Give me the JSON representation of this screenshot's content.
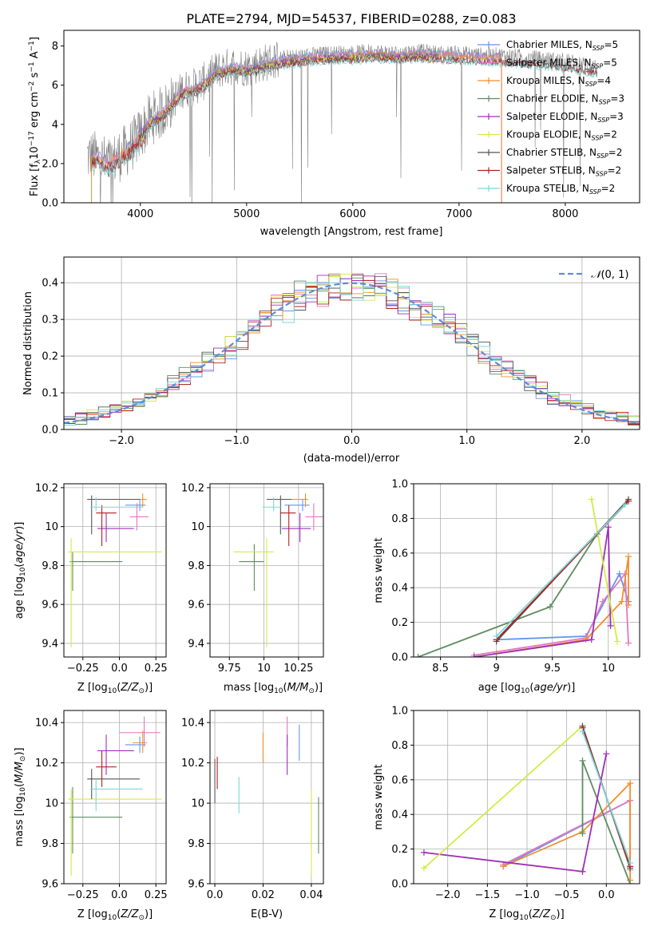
{
  "figure": {
    "title": "PLATE=2794, MJD=54537, FIBERID=0288, z=0.083"
  },
  "models": [
    {
      "name": "Chabrier MILES",
      "nssp": "5",
      "color": "#6495ED"
    },
    {
      "name": "Salpeter MILES",
      "nssp": "5",
      "color": "#e377c2"
    },
    {
      "name": "Kroupa MILES",
      "nssp": "4",
      "color": "#f28e2b"
    },
    {
      "name": "Chabrier ELODIE",
      "nssp": "3",
      "color": "#5e8c61"
    },
    {
      "name": "Salpeter ELODIE",
      "nssp": "3",
      "color": "#9b30b8"
    },
    {
      "name": "Kroupa ELODIE",
      "nssp": "2",
      "color": "#d4ea45"
    },
    {
      "name": "Chabrier STELIB",
      "nssp": "2",
      "color": "#555555"
    },
    {
      "name": "Salpeter STELIB",
      "nssp": "2",
      "color": "#b22222"
    },
    {
      "name": "Kroupa STELIB",
      "nssp": "2",
      "color": "#7dd7d7"
    }
  ],
  "chart_data": [
    {
      "id": "spectrum",
      "type": "line",
      "xlabel": "wavelength [Angstrom, rest frame]",
      "ylabel": "Flux [f$_\\lambda$10$^{-17}$ erg cm$^{-2}$ s$^{-1}$ A$^{-1}$]",
      "xlim": [
        3280,
        8700
      ],
      "ylim": [
        0,
        8.8
      ],
      "xticks": [
        4000,
        5000,
        6000,
        7000,
        8000
      ],
      "yticks": [
        0,
        2,
        4,
        6,
        8
      ],
      "data_color": "#808080",
      "data_x": [
        3500,
        3600,
        3700,
        3800,
        3900,
        4000,
        4100,
        4200,
        4300,
        4400,
        4500,
        4600,
        4700,
        4800,
        4900,
        5000,
        5200,
        5400,
        5600,
        5800,
        6000,
        6200,
        6400,
        6600,
        6800,
        7000,
        7200,
        7400,
        7600,
        7800,
        8000,
        8200,
        8300
      ],
      "data_y": [
        2.4,
        2.3,
        2.0,
        2.4,
        2.8,
        3.5,
        4.3,
        4.6,
        5.2,
        5.8,
        5.9,
        6.2,
        6.7,
        6.9,
        7.0,
        6.9,
        7.2,
        7.4,
        7.5,
        7.6,
        7.6,
        7.7,
        7.6,
        7.7,
        7.6,
        7.6,
        7.5,
        7.5,
        7.4,
        7.3,
        7.2,
        7.0,
        6.9
      ],
      "models": [
        {
          "name": "Chabrier MILES",
          "x_range": [
            3540,
            7400
          ]
        },
        {
          "name": "Salpeter MILES",
          "x_range": [
            3540,
            7400
          ]
        },
        {
          "name": "Kroupa MILES",
          "x_range": [
            3540,
            7400
          ]
        },
        {
          "name": "Chabrier ELODIE",
          "x_range": [
            4000,
            6800
          ]
        },
        {
          "name": "Salpeter ELODIE",
          "x_range": [
            4000,
            6800
          ]
        },
        {
          "name": "Kroupa ELODIE",
          "x_range": [
            4000,
            6800
          ]
        },
        {
          "name": "Chabrier STELIB",
          "x_range": [
            3540,
            8300
          ]
        },
        {
          "name": "Salpeter STELIB",
          "x_range": [
            3540,
            8300
          ]
        },
        {
          "name": "Kroupa STELIB",
          "x_range": [
            3540,
            8300
          ]
        }
      ],
      "legend_suffix_main": ", N",
      "legend_suffix_sub": "SSP",
      "legend_placement": "right"
    },
    {
      "id": "residuals",
      "type": "histogram",
      "xlabel": "(data-model)/error",
      "ylabel": "Normed distribution",
      "xlim": [
        -2.5,
        2.5
      ],
      "ylim": [
        0,
        0.47
      ],
      "xticks": [
        -2,
        -1,
        0,
        1,
        2
      ],
      "yticks": [
        0.0,
        0.1,
        0.2,
        0.3,
        0.4
      ],
      "grid": true,
      "bin_width": 0.1,
      "reference_curve": {
        "label": "N(0,1)",
        "mean": 0,
        "sigma": 1,
        "color": "#5b8ed6",
        "dashed": true
      },
      "legend_placement": "top-right"
    },
    {
      "id": "age-vs-Z",
      "type": "errorbar",
      "xlabel": "Z [log10(Z/Z_sun)]",
      "ylabel": "age [log10(age/yr)]",
      "xlim": [
        -0.38,
        0.32
      ],
      "ylim": [
        9.33,
        10.22
      ],
      "xticks": [
        -0.25,
        0.0,
        0.25
      ],
      "yticks": [
        9.4,
        9.6,
        9.8,
        10.0,
        10.2
      ],
      "grid": true,
      "points": [
        {
          "model": "Chabrier MILES",
          "x": 0.14,
          "xerr": [
            0.1,
            0.04
          ],
          "y": 10.11,
          "yerr": [
            0.03,
            0.03
          ]
        },
        {
          "model": "Salpeter MILES",
          "x": 0.12,
          "xerr": [
            0.05,
            0.08
          ],
          "y": 10.05,
          "yerr": [
            0.07,
            0.07
          ]
        },
        {
          "model": "Kroupa MILES",
          "x": 0.16,
          "xerr": [
            0.11,
            0.03
          ],
          "y": 10.14,
          "yerr": [
            0.04,
            0.03
          ]
        },
        {
          "model": "Chabrier ELODIE",
          "x": -0.32,
          "xerr": [
            0.02,
            0.34
          ],
          "y": 9.82,
          "yerr": [
            0.15,
            0.05
          ]
        },
        {
          "model": "Salpeter ELODIE",
          "x": -0.09,
          "xerr": [
            0.06,
            0.19
          ],
          "y": 9.99,
          "yerr": [
            0.07,
            0.08
          ]
        },
        {
          "model": "Kroupa ELODIE",
          "x": -0.33,
          "xerr": [
            0.02,
            0.62
          ],
          "y": 9.87,
          "yerr": [
            0.49,
            0.07
          ]
        },
        {
          "model": "Chabrier STELIB",
          "x": -0.19,
          "xerr": [
            0.03,
            0.33
          ],
          "y": 10.14,
          "yerr": [
            0.18,
            0.02
          ]
        },
        {
          "model": "Salpeter STELIB",
          "x": -0.12,
          "xerr": [
            0.04,
            0.1
          ],
          "y": 10.07,
          "yerr": [
            0.17,
            0.04
          ]
        },
        {
          "model": "Kroupa STELIB",
          "x": -0.16,
          "xerr": [
            0.04,
            0.32
          ],
          "y": 10.1,
          "yerr": [
            0.02,
            0.05
          ]
        }
      ]
    },
    {
      "id": "age-vs-mass",
      "type": "errorbar",
      "xlabel": "mass [log10(M/M_sun)]",
      "ylabel": "",
      "xlim": [
        9.61,
        10.43
      ],
      "ylim": [
        9.33,
        10.22
      ],
      "xticks": [
        9.75,
        10.0,
        10.25
      ],
      "yticks": [
        9.4,
        9.6,
        9.8,
        10.0,
        10.2
      ],
      "grid": true,
      "points": [
        {
          "model": "Chabrier MILES",
          "x": 10.28,
          "xerr": [
            0.13,
            0.05
          ],
          "y": 10.11,
          "yerr": [
            0.03,
            0.03
          ]
        },
        {
          "model": "Salpeter MILES",
          "x": 10.36,
          "xerr": [
            0.06,
            0.08
          ],
          "y": 10.05,
          "yerr": [
            0.07,
            0.07
          ]
        },
        {
          "model": "Kroupa MILES",
          "x": 10.3,
          "xerr": [
            0.1,
            0.02
          ],
          "y": 10.14,
          "yerr": [
            0.04,
            0.03
          ]
        },
        {
          "model": "Chabrier ELODIE",
          "x": 9.93,
          "xerr": [
            0.11,
            0.07
          ],
          "y": 9.82,
          "yerr": [
            0.15,
            0.09
          ]
        },
        {
          "model": "Salpeter ELODIE",
          "x": 10.26,
          "xerr": [
            0.13,
            0.08
          ],
          "y": 9.99,
          "yerr": [
            0.07,
            0.08
          ]
        },
        {
          "model": "Kroupa ELODIE",
          "x": 10.02,
          "xerr": [
            0.24,
            0.05
          ],
          "y": 9.87,
          "yerr": [
            0.49,
            0.07
          ]
        },
        {
          "model": "Chabrier STELIB",
          "x": 10.12,
          "xerr": [
            0.1,
            0.08
          ],
          "y": 10.14,
          "yerr": [
            0.18,
            0.02
          ]
        },
        {
          "model": "Salpeter STELIB",
          "x": 10.18,
          "xerr": [
            0.06,
            0.05
          ],
          "y": 10.07,
          "yerr": [
            0.17,
            0.04
          ]
        },
        {
          "model": "Kroupa STELIB",
          "x": 10.07,
          "xerr": [
            0.08,
            0.06
          ],
          "y": 10.1,
          "yerr": [
            0.02,
            0.05
          ]
        }
      ]
    },
    {
      "id": "weights-vs-age",
      "type": "line",
      "xlabel": "age [log10(age/yr)]",
      "ylabel": "mass weight",
      "xlim": [
        8.26,
        10.28
      ],
      "ylim": [
        0,
        1.0
      ],
      "xticks": [
        8.5,
        9.0,
        9.5,
        10.0
      ],
      "yticks": [
        0.0,
        0.2,
        0.4,
        0.6,
        0.8,
        1.0
      ],
      "grid": true,
      "series": [
        {
          "name": "Chabrier MILES",
          "x": [
            9.0,
            9.8,
            10.1,
            10.18
          ],
          "y": [
            0.1,
            0.12,
            0.48,
            0.32
          ]
        },
        {
          "name": "Salpeter MILES",
          "x": [
            8.8,
            9.8,
            9.95,
            10.15,
            10.18
          ],
          "y": [
            0.01,
            0.11,
            0.32,
            0.48,
            0.08
          ]
        },
        {
          "name": "Kroupa MILES",
          "x": [
            9.0,
            9.8,
            10.12,
            10.18,
            10.18
          ],
          "y": [
            0.02,
            0.1,
            0.32,
            0.58,
            0.3
          ]
        },
        {
          "name": "Chabrier ELODIE",
          "x": [
            8.3,
            9.48,
            9.9
          ],
          "y": [
            0.0,
            0.29,
            0.71
          ]
        },
        {
          "name": "Salpeter ELODIE",
          "x": [
            8.8,
            9.85,
            10.0,
            10.02
          ],
          "y": [
            0.0,
            0.1,
            0.75,
            0.18
          ]
        },
        {
          "name": "Kroupa ELODIE",
          "x": [
            9.85,
            10.08
          ],
          "y": [
            0.91,
            0.09
          ]
        },
        {
          "name": "Chabrier STELIB",
          "x": [
            9.0,
            10.18
          ],
          "y": [
            0.09,
            0.91
          ]
        },
        {
          "name": "Salpeter STELIB",
          "x": [
            9.0,
            10.18
          ],
          "y": [
            0.1,
            0.9
          ]
        },
        {
          "name": "Kroupa STELIB",
          "x": [
            9.0,
            10.15
          ],
          "y": [
            0.12,
            0.88
          ]
        }
      ]
    },
    {
      "id": "mass-vs-Z",
      "type": "errorbar",
      "xlabel": "Z [log10(Z/Z_sun)]",
      "ylabel": "mass [log10(M/M_sun)]",
      "xlim": [
        -0.38,
        0.32
      ],
      "ylim": [
        9.6,
        10.46
      ],
      "xticks": [
        -0.25,
        0.0,
        0.25
      ],
      "yticks": [
        9.6,
        9.8,
        10.0,
        10.2,
        10.4
      ],
      "grid": true,
      "points": [
        {
          "model": "Chabrier MILES",
          "x": 0.14,
          "xerr": [
            0.1,
            0.04
          ],
          "y": 10.29,
          "yerr": [
            0.04,
            0.04
          ]
        },
        {
          "model": "Salpeter MILES",
          "x": 0.17,
          "xerr": [
            0.17,
            0.11
          ],
          "y": 10.35,
          "yerr": [
            0.07,
            0.08
          ]
        },
        {
          "model": "Kroupa MILES",
          "x": 0.16,
          "xerr": [
            0.07,
            0.03
          ],
          "y": 10.3,
          "yerr": [
            0.05,
            0.06
          ]
        },
        {
          "model": "Chabrier ELODIE",
          "x": -0.32,
          "xerr": [
            0.02,
            0.34
          ],
          "y": 9.93,
          "yerr": [
            0.18,
            0.15
          ]
        },
        {
          "model": "Salpeter ELODIE",
          "x": -0.09,
          "xerr": [
            0.06,
            0.19
          ],
          "y": 10.26,
          "yerr": [
            0.12,
            0.08
          ]
        },
        {
          "model": "Kroupa ELODIE",
          "x": -0.33,
          "xerr": [
            0.02,
            0.62
          ],
          "y": 10.02,
          "yerr": [
            0.38,
            0.05
          ]
        },
        {
          "model": "Chabrier STELIB",
          "x": -0.19,
          "xerr": [
            0.03,
            0.33
          ],
          "y": 10.12,
          "yerr": [
            0.1,
            0.05
          ]
        },
        {
          "model": "Salpeter STELIB",
          "x": -0.12,
          "xerr": [
            0.04,
            0.1
          ],
          "y": 10.18,
          "yerr": [
            0.1,
            0.08
          ]
        },
        {
          "model": "Kroupa STELIB",
          "x": -0.16,
          "xerr": [
            0.04,
            0.32
          ],
          "y": 10.07,
          "yerr": [
            0.11,
            0.05
          ]
        }
      ]
    },
    {
      "id": "mass-vs-EBV",
      "type": "errorbar",
      "xlabel": "E(B-V)",
      "ylabel": "",
      "xlim": [
        -0.002,
        0.045
      ],
      "ylim": [
        9.6,
        10.46
      ],
      "xticks": [
        0.0,
        0.02,
        0.04
      ],
      "yticks": [
        9.6,
        9.8,
        10.0,
        10.2,
        10.4
      ],
      "grid": true,
      "points": [
        {
          "model": "Chabrier MILES",
          "x": 0.035,
          "y": 10.29,
          "yerr": [
            0.08,
            0.1
          ]
        },
        {
          "model": "Salpeter MILES",
          "x": 0.03,
          "y": 10.35,
          "yerr": [
            0.07,
            0.08
          ]
        },
        {
          "model": "Kroupa MILES",
          "x": 0.02,
          "y": 10.3,
          "yerr": [
            0.1,
            0.05
          ]
        },
        {
          "model": "Chabrier ELODIE",
          "x": 0.043,
          "y": 9.93,
          "yerr": [
            0.18,
            0.1
          ]
        },
        {
          "model": "Salpeter ELODIE",
          "x": 0.03,
          "y": 10.26,
          "yerr": [
            0.12,
            0.08
          ]
        },
        {
          "model": "Kroupa ELODIE",
          "x": 0.04,
          "y": 10.02,
          "yerr": [
            0.38,
            0.05
          ]
        },
        {
          "model": "Chabrier STELIB",
          "x": 0.0,
          "y": 10.12,
          "yerr": [
            0.12,
            0.1
          ]
        },
        {
          "model": "Salpeter STELIB",
          "x": 0.001,
          "y": 10.15,
          "yerr": [
            0.08,
            0.08
          ]
        },
        {
          "model": "Kroupa STELIB",
          "x": 0.01,
          "y": 10.05,
          "yerr": [
            0.1,
            0.08
          ]
        }
      ]
    },
    {
      "id": "weights-vs-Z",
      "type": "line",
      "xlabel": "Z [log10(Z/Z_sun)]",
      "ylabel": "mass weight",
      "xlim": [
        -2.43,
        0.42
      ],
      "ylim": [
        0,
        1.0
      ],
      "xticks": [
        -2.0,
        -1.5,
        -1.0,
        -0.5,
        0.0
      ],
      "yticks": [
        0.0,
        0.2,
        0.4,
        0.6,
        0.8,
        1.0
      ],
      "grid": true,
      "series": [
        {
          "name": "Chabrier MILES",
          "x": [
            -1.3,
            0.3,
            0.3
          ],
          "y": [
            0.1,
            0.48,
            0.1
          ]
        },
        {
          "name": "Salpeter MILES",
          "x": [
            -1.3,
            0.3,
            0.3
          ],
          "y": [
            0.11,
            0.48,
            0.08
          ]
        },
        {
          "name": "Kroupa MILES",
          "x": [
            -1.3,
            -0.3,
            0.3,
            0.3
          ],
          "y": [
            0.1,
            0.3,
            0.58,
            0.02
          ]
        },
        {
          "name": "Chabrier ELODIE",
          "x": [
            -0.3,
            -0.3,
            0.3
          ],
          "y": [
            0.29,
            0.71,
            0.0
          ]
        },
        {
          "name": "Salpeter ELODIE",
          "x": [
            -2.3,
            -0.3,
            0.0,
            -0.3
          ],
          "y": [
            0.18,
            0.07,
            0.75,
            0.07
          ]
        },
        {
          "name": "Kroupa ELODIE",
          "x": [
            -2.3,
            -0.3
          ],
          "y": [
            0.09,
            0.91
          ]
        },
        {
          "name": "Chabrier STELIB",
          "x": [
            -0.3,
            0.3
          ],
          "y": [
            0.91,
            0.09
          ]
        },
        {
          "name": "Salpeter STELIB",
          "x": [
            -0.3,
            0.3
          ],
          "y": [
            0.9,
            0.1
          ]
        },
        {
          "name": "Kroupa STELIB",
          "x": [
            -0.3,
            0.3
          ],
          "y": [
            0.88,
            0.12
          ]
        }
      ]
    }
  ]
}
